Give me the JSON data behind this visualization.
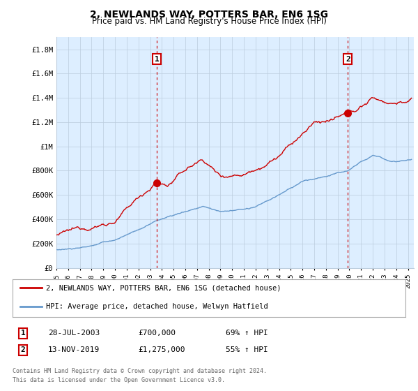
{
  "title": "2, NEWLANDS WAY, POTTERS BAR, EN6 1SG",
  "subtitle": "Price paid vs. HM Land Registry's House Price Index (HPI)",
  "ylabel_ticks": [
    "£0",
    "£200K",
    "£400K",
    "£600K",
    "£800K",
    "£1M",
    "£1.2M",
    "£1.4M",
    "£1.6M",
    "£1.8M"
  ],
  "ytick_values": [
    0,
    200000,
    400000,
    600000,
    800000,
    1000000,
    1200000,
    1400000,
    1600000,
    1800000
  ],
  "ylim": [
    0,
    1900000
  ],
  "xlim_start": 1995.0,
  "xlim_end": 2025.5,
  "sale1_date": 2003.57,
  "sale1_price": 700000,
  "sale2_date": 2019.87,
  "sale2_price": 1275000,
  "sale1_label": "1",
  "sale2_label": "2",
  "sale1_info": "28-JUL-2003",
  "sale1_amount": "£700,000",
  "sale1_hpi": "69% ↑ HPI",
  "sale2_info": "13-NOV-2019",
  "sale2_amount": "£1,275,000",
  "sale2_hpi": "55% ↑ HPI",
  "legend1_label": "2, NEWLANDS WAY, POTTERS BAR, EN6 1SG (detached house)",
  "legend2_label": "HPI: Average price, detached house, Welwyn Hatfield",
  "footer1": "Contains HM Land Registry data © Crown copyright and database right 2024.",
  "footer2": "This data is licensed under the Open Government Licence v3.0.",
  "hpi_color": "#6699cc",
  "price_color": "#cc0000",
  "vline_color": "#cc0000",
  "bg_chart": "#ddeeff",
  "background_color": "#ffffff",
  "grid_color": "#bbccdd"
}
